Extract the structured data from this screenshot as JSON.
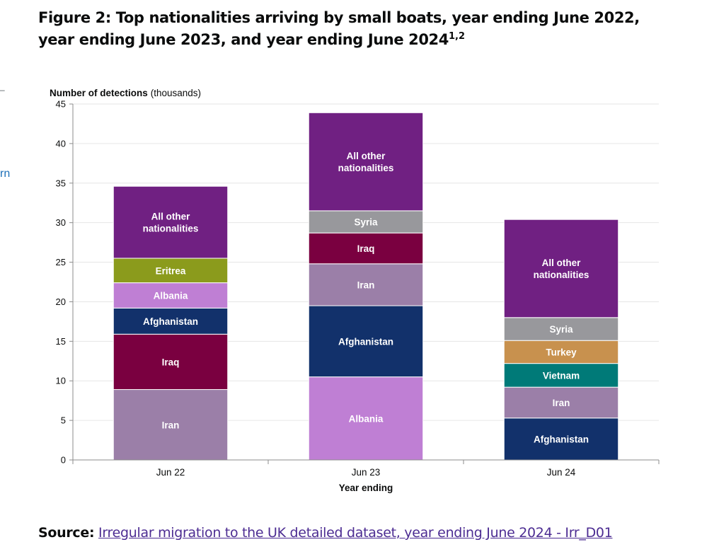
{
  "figure": {
    "title_main": "Figure 2: Top nationalities arriving by small boats, year ending June 2022, year ending June 2023, and year ending June 2024",
    "title_superscript": "1,2"
  },
  "edge_text": {
    "top": "–",
    "bottom": "rn"
  },
  "source": {
    "label": "Source:",
    "link_text": "Irregular migration to the UK detailed dataset, year ending June 2024 - Irr_D01"
  },
  "chart_data": {
    "type": "bar",
    "stacked": true,
    "ylabel_bold": "Number of detections",
    "ylabel_unit": "(thousands)",
    "xlabel": "Year ending",
    "ylim": [
      0,
      45
    ],
    "yticks": [
      0,
      5,
      10,
      15,
      20,
      25,
      30,
      35,
      40,
      45
    ],
    "grid": true,
    "legend": "none",
    "categories": [
      "Jun 22",
      "Jun 23",
      "Jun 24"
    ],
    "stacks": [
      {
        "category": "Jun 22",
        "segments": [
          {
            "label": "Iran",
            "value": 8.9,
            "color": "#9b7fa8"
          },
          {
            "label": "Iraq",
            "value": 7.0,
            "color": "#7a0040"
          },
          {
            "label": "Afghanistan",
            "value": 3.3,
            "color": "#12316b"
          },
          {
            "label": "Albania",
            "value": 3.2,
            "color": "#bf7fd4"
          },
          {
            "label": "Eritrea",
            "value": 3.1,
            "color": "#8b9b1c"
          },
          {
            "label": "All other nationalities",
            "value": 9.1,
            "color": "#702082"
          }
        ]
      },
      {
        "category": "Jun 23",
        "segments": [
          {
            "label": "Albania",
            "value": 10.5,
            "color": "#bf7fd4"
          },
          {
            "label": "Afghanistan",
            "value": 9.0,
            "color": "#12316b"
          },
          {
            "label": "Iran",
            "value": 5.3,
            "color": "#9b7fa8"
          },
          {
            "label": "Iraq",
            "value": 3.9,
            "color": "#7a0040"
          },
          {
            "label": "Syria",
            "value": 2.8,
            "color": "#98989c"
          },
          {
            "label": "All other nationalities",
            "value": 12.4,
            "color": "#702082"
          }
        ]
      },
      {
        "category": "Jun 24",
        "segments": [
          {
            "label": "Afghanistan",
            "value": 5.3,
            "color": "#12316b"
          },
          {
            "label": "Iran",
            "value": 3.9,
            "color": "#9b7fa8"
          },
          {
            "label": "Vietnam",
            "value": 3.0,
            "color": "#007a78"
          },
          {
            "label": "Turkey",
            "value": 2.9,
            "color": "#c8914e"
          },
          {
            "label": "Syria",
            "value": 2.9,
            "color": "#98989c"
          },
          {
            "label": "All other nationalities",
            "value": 12.4,
            "color": "#702082"
          }
        ]
      }
    ]
  }
}
